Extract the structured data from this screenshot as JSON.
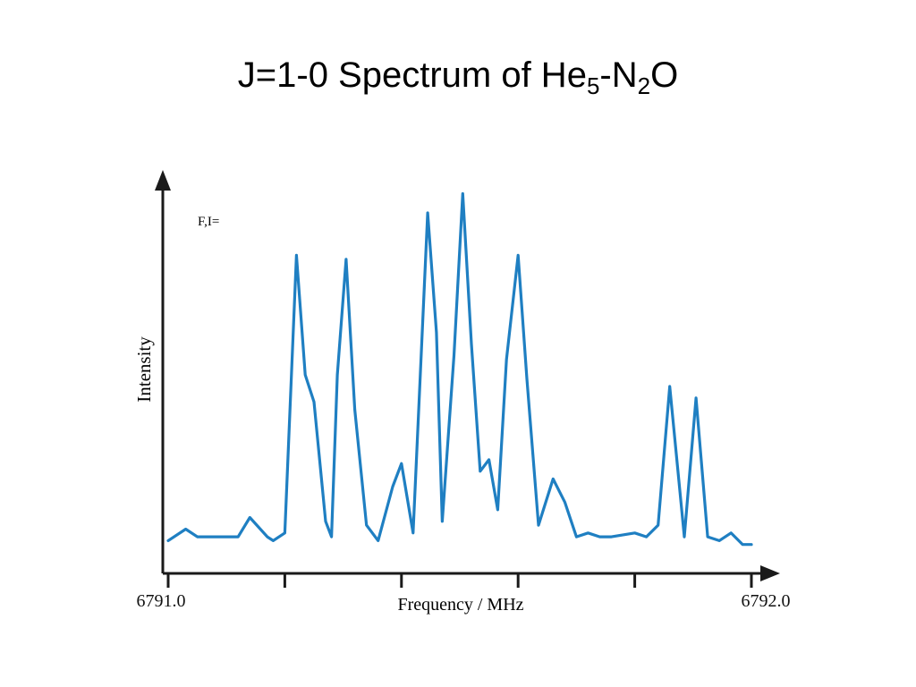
{
  "slide": {
    "title_main": "J=1-0 Spectrum of He",
    "title_sub1": "5",
    "title_mid": "-N",
    "title_sub2": "2",
    "title_end": "O"
  },
  "chart_data": {
    "type": "line",
    "title": "J=1-0 Spectrum of He5-N2O",
    "xlabel": "Frequency / MHz",
    "ylabel": "Intensity",
    "annotation": "F,I=",
    "xlim": [
      6791.0,
      6792.0
    ],
    "ylim": [
      0,
      100
    ],
    "grid": false,
    "legend": "none",
    "tick_labels": [
      {
        "label": "6791.0",
        "x": 6791.0
      },
      {
        "label": "6792.0",
        "x": 6792.0
      }
    ],
    "minor_ticks": [
      6791.2,
      6791.4,
      6791.6,
      6791.8
    ],
    "series": [
      {
        "color": "#1f7fc2",
        "x": [
          6791.0,
          6791.03,
          6791.05,
          6791.08,
          6791.12,
          6791.14,
          6791.17,
          6791.18,
          6791.2,
          6791.22,
          6791.235,
          6791.25,
          6791.27,
          6791.28,
          6791.29,
          6791.305,
          6791.32,
          6791.34,
          6791.36,
          6791.385,
          6791.4,
          6791.42,
          6791.445,
          6791.46,
          6791.47,
          6791.49,
          6791.505,
          6791.52,
          6791.535,
          6791.55,
          6791.565,
          6791.58,
          6791.6,
          6791.615,
          6791.635,
          6791.66,
          6791.68,
          6791.7,
          6791.72,
          6791.74,
          6791.76,
          6791.8,
          6791.82,
          6791.84,
          6791.86,
          6791.885,
          6791.905,
          6791.925,
          6791.945,
          6791.965,
          6791.985,
          6792.0
        ],
        "y": [
          2,
          5,
          3,
          3,
          3,
          8,
          3,
          2,
          4,
          76,
          45,
          38,
          7,
          3,
          45,
          75,
          36,
          6,
          2,
          16,
          22,
          4,
          87,
          56,
          7,
          50,
          92,
          53,
          20,
          23,
          10,
          49,
          76,
          44,
          6,
          18,
          12,
          3,
          4,
          3,
          3,
          4,
          3,
          6,
          42,
          3,
          39,
          3,
          2,
          4,
          1,
          1
        ]
      }
    ]
  }
}
